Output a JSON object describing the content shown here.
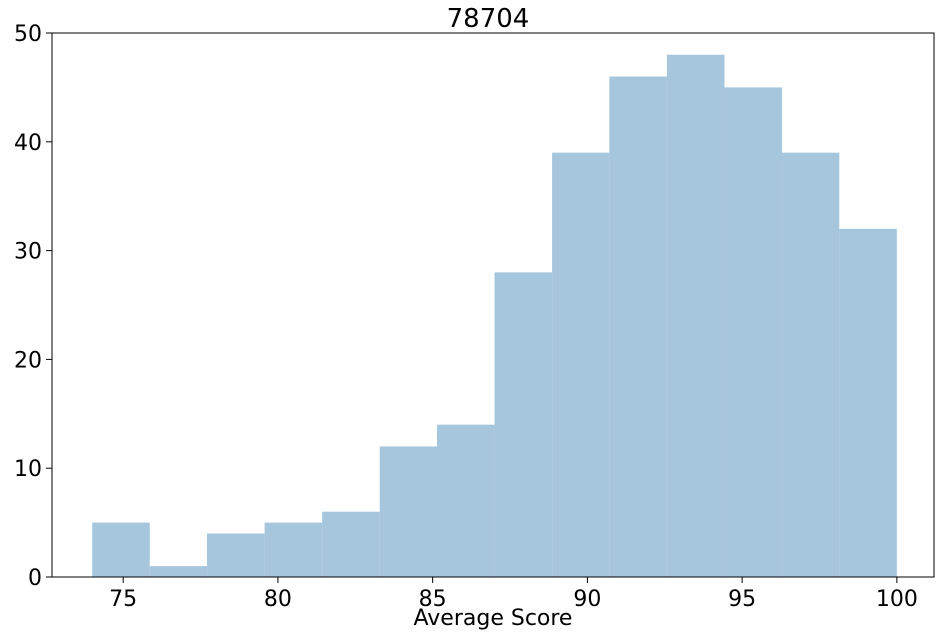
{
  "chart_data": {
    "type": "bar",
    "title": "78704",
    "xlabel": "Average Score",
    "ylabel": "",
    "bar_color": "#a6c6de",
    "xlim": [
      72.7,
      101.2
    ],
    "ylim": [
      0,
      50
    ],
    "xticks": [
      75,
      80,
      85,
      90,
      95,
      100
    ],
    "yticks": [
      0,
      10,
      20,
      30,
      40,
      50
    ],
    "bins": [
      {
        "start": 74.0,
        "end": 75.86,
        "count": 5
      },
      {
        "start": 75.86,
        "end": 77.71,
        "count": 1
      },
      {
        "start": 77.71,
        "end": 79.57,
        "count": 4
      },
      {
        "start": 79.57,
        "end": 81.43,
        "count": 5
      },
      {
        "start": 81.43,
        "end": 83.29,
        "count": 6
      },
      {
        "start": 83.29,
        "end": 85.14,
        "count": 12
      },
      {
        "start": 85.14,
        "end": 87.0,
        "count": 14
      },
      {
        "start": 87.0,
        "end": 88.86,
        "count": 28
      },
      {
        "start": 88.86,
        "end": 90.71,
        "count": 39
      },
      {
        "start": 90.71,
        "end": 92.57,
        "count": 46
      },
      {
        "start": 92.57,
        "end": 94.43,
        "count": 48
      },
      {
        "start": 94.43,
        "end": 96.29,
        "count": 45
      },
      {
        "start": 96.29,
        "end": 98.14,
        "count": 39
      },
      {
        "start": 98.14,
        "end": 100.0,
        "count": 32
      }
    ],
    "grid": false,
    "legend": "none"
  }
}
